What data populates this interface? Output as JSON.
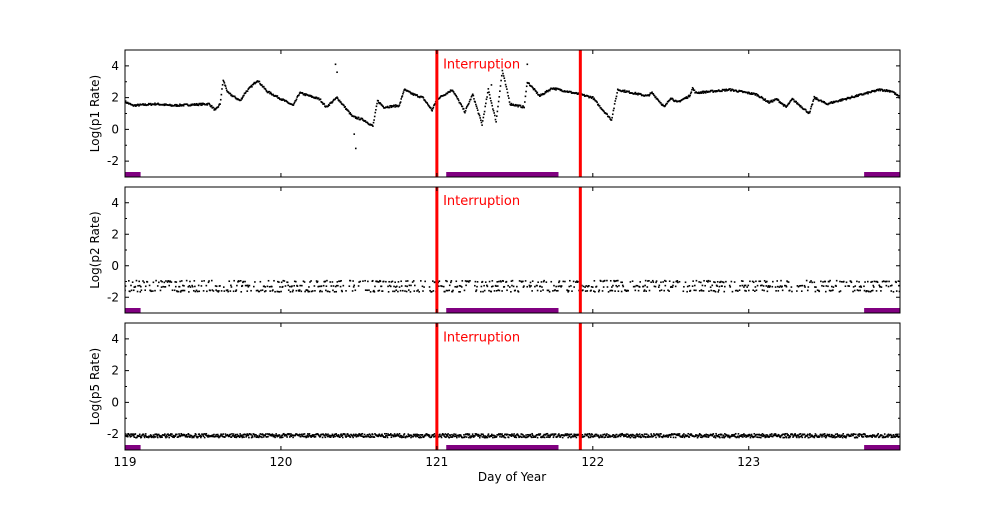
{
  "chart_data": {
    "type": "scatter",
    "xlabel": "Day of Year",
    "xlim": [
      119,
      123.97
    ],
    "xticks": [
      119,
      120,
      121,
      122,
      123
    ],
    "xtick_labels": [
      "119",
      "120",
      "121",
      "122",
      "123"
    ],
    "ylim": [
      -3,
      5
    ],
    "yticks": [
      -2,
      0,
      2,
      4
    ],
    "ytick_labels": [
      "-2",
      "0",
      "2",
      "4"
    ],
    "grid": false,
    "colors": {
      "points": "#000000",
      "vline": "#ff0000",
      "span": "#800080",
      "annotation": "#ff0000"
    },
    "vlines": [
      121.0,
      121.92
    ],
    "annotation": {
      "text": "Interruption",
      "x": 121.04,
      "y": 4.1
    },
    "spans": [
      [
        119.0,
        119.1
      ],
      [
        121.06,
        121.78
      ],
      [
        123.74,
        123.97
      ]
    ],
    "panels": [
      {
        "ylabel": "Log(p1 Rate)",
        "trace": [
          [
            119.0,
            1.75
          ],
          [
            119.05,
            1.5
          ],
          [
            119.2,
            1.6
          ],
          [
            119.3,
            1.5
          ],
          [
            119.54,
            1.6
          ],
          [
            119.58,
            1.2
          ],
          [
            119.61,
            1.6
          ],
          [
            119.63,
            3.1
          ],
          [
            119.66,
            2.3
          ],
          [
            119.74,
            1.8
          ],
          [
            119.77,
            2.3
          ],
          [
            119.85,
            3.1
          ],
          [
            119.91,
            2.4
          ],
          [
            120.08,
            1.5
          ],
          [
            120.12,
            2.3
          ],
          [
            120.25,
            1.9
          ],
          [
            120.29,
            1.4
          ],
          [
            120.36,
            2.0
          ],
          [
            120.46,
            0.8
          ],
          [
            120.53,
            0.6
          ],
          [
            120.59,
            0.2
          ],
          [
            120.62,
            1.8
          ],
          [
            120.66,
            1.4
          ],
          [
            120.76,
            1.5
          ],
          [
            120.79,
            2.5
          ],
          [
            120.85,
            2.2
          ],
          [
            120.91,
            2.0
          ],
          [
            120.97,
            1.2
          ],
          [
            121.0,
            1.9
          ],
          [
            121.1,
            2.5
          ],
          [
            121.18,
            1.1
          ],
          [
            121.23,
            2.2
          ],
          [
            121.29,
            0.3
          ],
          [
            121.33,
            2.5
          ],
          [
            121.38,
            0.5
          ],
          [
            121.42,
            3.7
          ],
          [
            121.47,
            1.6
          ],
          [
            121.56,
            1.4
          ],
          [
            121.58,
            3.0
          ],
          [
            121.66,
            2.1
          ],
          [
            121.74,
            2.6
          ],
          [
            121.92,
            2.2
          ],
          [
            122.0,
            2.0
          ],
          [
            122.04,
            1.5
          ],
          [
            122.12,
            0.6
          ],
          [
            122.16,
            2.5
          ],
          [
            122.35,
            2.1
          ],
          [
            122.38,
            2.3
          ],
          [
            122.46,
            1.4
          ],
          [
            122.5,
            2.0
          ],
          [
            122.54,
            1.7
          ],
          [
            122.62,
            2.1
          ],
          [
            122.64,
            2.6
          ],
          [
            122.66,
            2.3
          ],
          [
            122.88,
            2.5
          ],
          [
            123.05,
            2.2
          ],
          [
            123.13,
            1.7
          ],
          [
            123.18,
            1.9
          ],
          [
            123.24,
            1.4
          ],
          [
            123.28,
            1.9
          ],
          [
            123.39,
            1.0
          ],
          [
            123.42,
            2.0
          ],
          [
            123.5,
            1.6
          ],
          [
            123.69,
            2.1
          ],
          [
            123.84,
            2.5
          ],
          [
            123.92,
            2.4
          ],
          [
            123.97,
            2.0
          ]
        ],
        "outliers": [
          [
            120.35,
            4.1
          ],
          [
            120.36,
            3.6
          ],
          [
            120.48,
            -1.2
          ],
          [
            120.47,
            -0.3
          ],
          [
            121.58,
            4.1
          ],
          [
            121.35,
            2.8
          ]
        ]
      },
      {
        "ylabel": "Log(p2 Rate)",
        "levels": [
          -1.0,
          -1.3,
          -1.6
        ]
      },
      {
        "ylabel": "Log(p5 Rate)",
        "levels": [
          -2.1
        ]
      }
    ]
  }
}
